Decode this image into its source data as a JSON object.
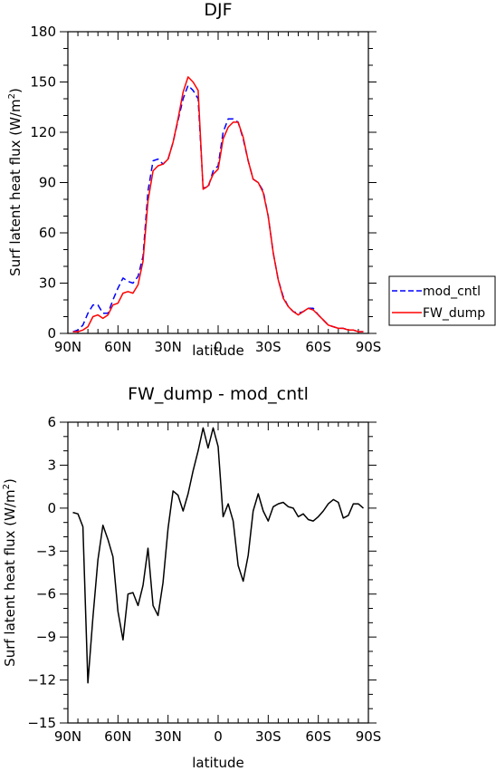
{
  "chart_data": [
    {
      "type": "line",
      "title": "DJF",
      "xlabel": "latitude",
      "ylabel_main": "Surf latent heat flux (W/m",
      "ylabel_sup": "2",
      "ylabel_close": ")",
      "xlim": [
        90,
        -90
      ],
      "ylim": [
        0,
        180
      ],
      "x_ticks": [
        90,
        60,
        30,
        0,
        -30,
        -60,
        -90
      ],
      "x_tick_labels": [
        "90N",
        "60N",
        "30N",
        "0",
        "30S",
        "60S",
        "90S"
      ],
      "y_ticks": [
        0,
        30,
        60,
        90,
        120,
        150,
        180
      ],
      "y_tick_labels": [
        "0",
        "30",
        "60",
        "90",
        "120",
        "150",
        "180"
      ],
      "legend_position": "right",
      "series": [
        {
          "name": "mod_cntl",
          "color": "#0000ff",
          "dash": "dashed",
          "x": [
            87,
            84,
            81,
            78,
            75,
            72,
            69,
            66,
            63,
            60,
            57,
            54,
            51,
            48,
            45,
            42,
            39,
            36,
            33,
            30,
            27,
            24,
            21,
            18,
            15,
            12,
            9,
            6,
            3,
            0,
            -3,
            -6,
            -9,
            -12,
            -15,
            -18,
            -21,
            -24,
            -27,
            -30,
            -33,
            -36,
            -39,
            -42,
            -45,
            -48,
            -51,
            -54,
            -57,
            -60,
            -63,
            -66,
            -69,
            -72,
            -75,
            -78,
            -81,
            -84,
            -87
          ],
          "y": [
            1,
            2,
            5,
            12,
            17,
            17,
            12,
            12,
            20,
            27,
            33,
            31,
            30,
            34,
            46,
            85,
            103,
            104,
            101,
            104,
            114,
            127,
            140,
            148,
            145,
            140,
            87,
            87,
            97,
            100,
            120,
            128,
            128,
            126,
            116,
            103,
            92,
            90,
            85,
            70,
            48,
            32,
            22,
            16,
            13,
            12,
            13,
            15,
            15,
            11,
            8,
            5,
            4,
            3,
            3,
            2,
            2,
            1,
            1
          ]
        },
        {
          "name": "FW_dump",
          "color": "#ff0000",
          "dash": "solid",
          "x": [
            87,
            84,
            81,
            78,
            75,
            72,
            69,
            66,
            63,
            60,
            57,
            54,
            51,
            48,
            45,
            42,
            39,
            36,
            33,
            30,
            27,
            24,
            21,
            18,
            15,
            12,
            9,
            6,
            3,
            0,
            -3,
            -6,
            -9,
            -12,
            -15,
            -18,
            -21,
            -24,
            -27,
            -30,
            -33,
            -36,
            -39,
            -42,
            -45,
            -48,
            -51,
            -54,
            -57,
            -60,
            -63,
            -66,
            -69,
            -72,
            -75,
            -78,
            -81,
            -84,
            -87
          ],
          "y": [
            1,
            1,
            2,
            4,
            10,
            11,
            9,
            11,
            17,
            18,
            24,
            25,
            24,
            29,
            43,
            79,
            97,
            100,
            101,
            104,
            114,
            128,
            144,
            153,
            150,
            145,
            86,
            88,
            95,
            98,
            116,
            123,
            126,
            126,
            117,
            103,
            92,
            90,
            84,
            70,
            48,
            32,
            21,
            16,
            13,
            11,
            13,
            15,
            14,
            11,
            8,
            5,
            4,
            3,
            3,
            2,
            2,
            1,
            1
          ]
        }
      ]
    },
    {
      "type": "line",
      "title": "FW_dump - mod_cntl",
      "xlabel": "latitude",
      "ylabel_main": "Surf latent heat flux (W/m",
      "ylabel_sup": "2",
      "ylabel_close": ")",
      "xlim": [
        90,
        -90
      ],
      "ylim": [
        -15,
        6
      ],
      "x_ticks": [
        90,
        60,
        30,
        0,
        -30,
        -60,
        -90
      ],
      "x_tick_labels": [
        "90N",
        "60N",
        "30N",
        "0",
        "30S",
        "60S",
        "90S"
      ],
      "y_ticks": [
        6,
        3,
        0,
        -3,
        -6,
        -9,
        -12,
        -15
      ],
      "y_tick_labels": [
        "6",
        "3",
        "0",
        "−3",
        "−6",
        "−9",
        "−12",
        "−15"
      ],
      "series": [
        {
          "name": "",
          "color": "#000000",
          "dash": "solid",
          "x": [
            87,
            84,
            81,
            78,
            75,
            72,
            69,
            66,
            63,
            60,
            57,
            54,
            51,
            48,
            45,
            42,
            39,
            36,
            33,
            30,
            27,
            24,
            21,
            18,
            15,
            12,
            9,
            6,
            3,
            0,
            -3,
            -6,
            -9,
            -12,
            -15,
            -18,
            -21,
            -24,
            -27,
            -30,
            -33,
            -36,
            -39,
            -42,
            -45,
            -48,
            -51,
            -54,
            -57,
            -60,
            -63,
            -66,
            -69,
            -72,
            -75,
            -78,
            -81,
            -84,
            -87
          ],
          "y": [
            -0.3,
            -0.4,
            -1.3,
            -12.2,
            -7.6,
            -3.6,
            -1.2,
            -2.2,
            -3.4,
            -7.2,
            -9.2,
            -6.0,
            -5.9,
            -6.8,
            -5.4,
            -2.8,
            -6.8,
            -7.5,
            -5.2,
            -1.4,
            1.2,
            0.9,
            -0.2,
            1.0,
            2.6,
            4.0,
            5.6,
            4.2,
            5.6,
            4.3,
            -0.6,
            0.3,
            -0.9,
            -4.0,
            -5.1,
            -3.3,
            -0.2,
            1.0,
            -0.2,
            -0.9,
            0.1,
            0.3,
            0.4,
            0.1,
            0.0,
            -0.6,
            -0.4,
            -0.8,
            -0.9,
            -0.6,
            -0.2,
            0.3,
            0.6,
            0.4,
            -0.7,
            -0.5,
            0.3,
            0.3,
            0.0
          ]
        }
      ]
    }
  ]
}
